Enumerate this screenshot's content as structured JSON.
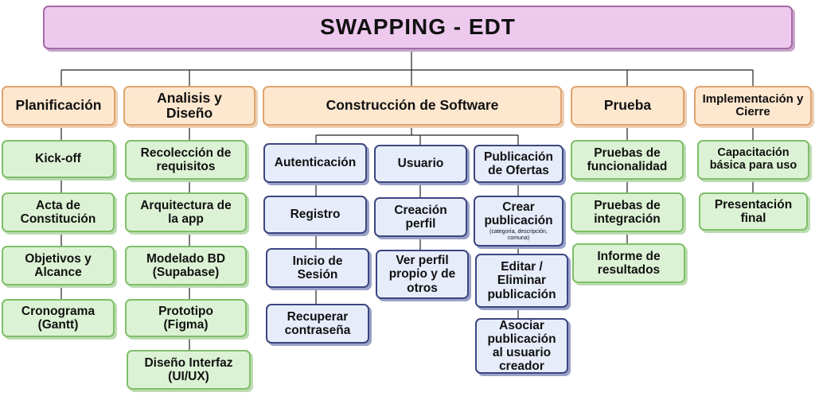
{
  "title": "SWAPPING - EDT",
  "phases": {
    "planificacion": {
      "label": "Planificación",
      "items": [
        "Kick-off",
        "Acta de Constitución",
        "Objetivos y Alcance",
        "Cronograma (Gantt)"
      ]
    },
    "analisis": {
      "label": "Analisis y Diseño",
      "items": [
        "Recolección de requisitos",
        "Arquitectura de la app",
        "Modelado BD (Supabase)",
        "Prototipo (Figma)",
        "Diseño Interfaz (UI/UX)"
      ]
    },
    "construccion": {
      "label": "Construcción de Software",
      "autenticacion": {
        "label": "Autenticación",
        "items": [
          "Registro",
          "Inicio de Sesión",
          "Recuperar contraseña"
        ]
      },
      "usuario": {
        "label": "Usuario",
        "items": [
          "Creación perfil",
          "Ver perfil propio y de otros"
        ]
      },
      "publicacion": {
        "label": "Publicación de Ofertas",
        "crear": "Crear publicación",
        "crear_note": "(categoría, descripción, comuna)",
        "items": [
          "Editar / Eliminar publicación",
          "Asociar publicación al usuario creador"
        ]
      }
    },
    "prueba": {
      "label": "Prueba",
      "items": [
        "Pruebas de funcionalidad",
        "Pruebas de integración",
        "Informe de resultados"
      ]
    },
    "implementacion": {
      "label": "Implementación y Cierre",
      "items": [
        "Capacitación básica para uso",
        "Presentación final"
      ]
    }
  }
}
